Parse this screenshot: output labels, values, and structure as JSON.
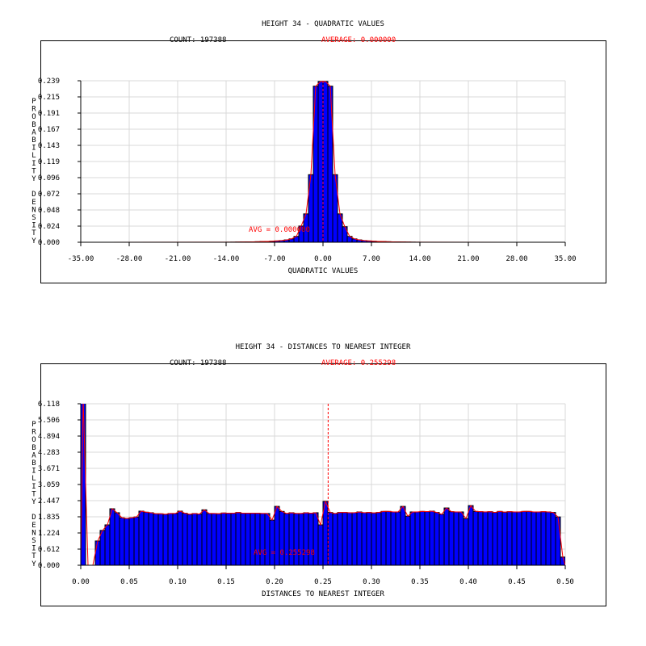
{
  "colors": {
    "bar": "#0000ff",
    "bar_edge": "#000000",
    "curve": "#ff0000",
    "grid": "#d9d9d9",
    "text": "#000000",
    "accent": "#ff0000"
  },
  "chart_data": [
    {
      "type": "bar",
      "title": "HEIGHT 34 - QUADRATIC VALUES",
      "count_text": "COUNT: 197388",
      "average_text": "AVERAGE: 0.000000",
      "avg_label": "AVG = 0.000000",
      "average": 0.0,
      "xlabel": "QUADRATIC VALUES",
      "ylabel": "PROBABILITY DENSITY",
      "xlim": [
        -35,
        35
      ],
      "ylim": [
        0,
        0.239
      ],
      "xticks": [
        "-35.00",
        "-28.00",
        "-21.00",
        "-14.00",
        "-7.00",
        "0.00",
        "7.00",
        "14.00",
        "21.00",
        "28.00",
        "35.00"
      ],
      "yticks": [
        "0.000",
        "0.024",
        "0.048",
        "0.072",
        "0.096",
        "0.119",
        "0.143",
        "0.167",
        "0.191",
        "0.215",
        "0.239"
      ],
      "grid": true,
      "bin_start": -14,
      "bin_width": 0.7,
      "values": [
        0.0001,
        0.0002,
        0.0003,
        0.0004,
        0.0005,
        0.0006,
        0.0008,
        0.001,
        0.0012,
        0.0015,
        0.002,
        0.0025,
        0.0035,
        0.005,
        0.0087,
        0.024,
        0.042,
        0.1,
        0.231,
        0.238,
        0.238,
        0.231,
        0.1,
        0.042,
        0.023,
        0.0087,
        0.005,
        0.0035,
        0.0025,
        0.002,
        0.0015,
        0.0012,
        0.001,
        0.0008,
        0.0006,
        0.0005,
        0.0004,
        0.0003,
        0.0002,
        0.0001
      ]
    },
    {
      "type": "bar",
      "title": "HEIGHT 34 - DISTANCES TO NEAREST INTEGER",
      "count_text": "COUNT: 197388",
      "average_text": "AVERAGE: 0.255298",
      "avg_label": "AVG = 0.255298",
      "average": 0.255298,
      "xlabel": "DISTANCES TO NEAREST INTEGER",
      "ylabel": "PROBABILITY DENSITY",
      "xlim": [
        0,
        0.5
      ],
      "ylim": [
        0,
        6.118
      ],
      "xticks": [
        "0.00",
        "0.05",
        "0.10",
        "0.15",
        "0.20",
        "0.25",
        "0.30",
        "0.35",
        "0.40",
        "0.45",
        "0.50"
      ],
      "yticks": [
        "0.000",
        "0.612",
        "1.224",
        "1.835",
        "2.447",
        "3.059",
        "3.671",
        "4.283",
        "4.894",
        "5.506",
        "6.118"
      ],
      "grid": true,
      "bin_start": 0,
      "bin_width": 0.005,
      "values": [
        6.3,
        0,
        0,
        0.92,
        1.32,
        1.53,
        2.14,
        1.99,
        1.8,
        1.77,
        1.8,
        1.83,
        2.05,
        2.01,
        1.99,
        1.95,
        1.95,
        1.93,
        1.96,
        1.96,
        2.05,
        1.97,
        1.93,
        1.96,
        1.94,
        2.1,
        1.96,
        1.96,
        1.95,
        1.98,
        1.97,
        1.97,
        2.0,
        1.97,
        1.97,
        1.97,
        1.97,
        1.96,
        1.96,
        1.71,
        2.23,
        2.04,
        1.96,
        1.99,
        1.96,
        1.96,
        1.99,
        1.97,
        1.99,
        1.53,
        2.42,
        2.0,
        1.96,
        2.0,
        2.0,
        1.99,
        1.99,
        2.02,
        1.99,
        2.0,
        1.98,
        2.0,
        2.04,
        2.04,
        2.02,
        2.02,
        2.23,
        1.86,
        2.02,
        2.02,
        2.04,
        2.03,
        2.05,
        2.0,
        1.93,
        2.17,
        2.03,
        2.02,
        2.02,
        1.77,
        2.26,
        2.04,
        2.03,
        2.02,
        2.03,
        2.0,
        2.04,
        2.01,
        2.03,
        2.02,
        2.02,
        2.04,
        2.04,
        2.02,
        2.02,
        2.03,
        2.02,
        2.0,
        1.83,
        0.31
      ]
    }
  ]
}
